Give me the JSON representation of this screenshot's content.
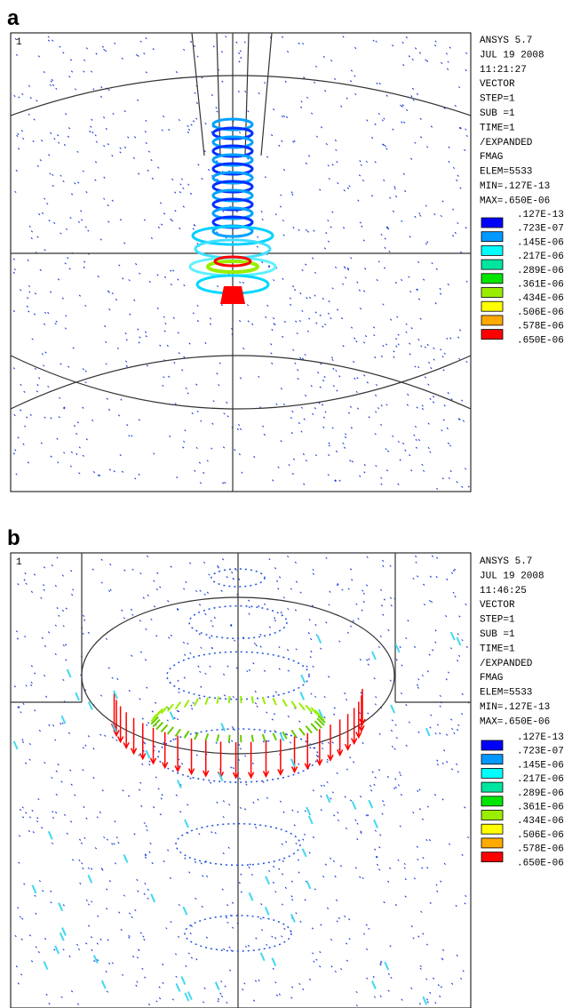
{
  "panels": [
    {
      "label": "a",
      "plot_number": "1",
      "info": [
        "ANSYS 5.7",
        "JUL 19 2008",
        "11:21:27",
        "VECTOR",
        "STEP=1",
        "SUB =1",
        "TIME=1",
        "/EXPANDED",
        "FMAG",
        "ELEM=5533",
        "MIN=.127E-13",
        "MAX=.650E-06"
      ],
      "legend": {
        "colors": [
          "#0000ff",
          "#0099ff",
          "#00ffff",
          "#00e6a0",
          "#00e600",
          "#99ee00",
          "#ffff00",
          "#ffaa00",
          "#ff0000"
        ],
        "labels": [
          ".127E-13",
          ".723E-07",
          ".145E-06",
          ".217E-06",
          ".289E-06",
          ".361E-06",
          ".434E-06",
          ".506E-06",
          ".578E-06",
          ".650E-06"
        ]
      }
    },
    {
      "label": "b",
      "plot_number": "1",
      "info": [
        "ANSYS 5.7",
        "JUL 19 2008",
        "11:46:25",
        "VECTOR",
        "STEP=1",
        "SUB =1",
        "TIME=1",
        "/EXPANDED",
        "FMAG",
        "ELEM=5533",
        "MIN=.127E-13",
        "MAX=.650E-06"
      ],
      "legend": {
        "colors": [
          "#0000ff",
          "#0099ff",
          "#00ffff",
          "#00e6a0",
          "#00e600",
          "#99ee00",
          "#ffff00",
          "#ffaa00",
          "#ff0000"
        ],
        "labels": [
          ".127E-13",
          ".723E-07",
          ".145E-06",
          ".217E-06",
          ".289E-06",
          ".361E-06",
          ".434E-06",
          ".506E-06",
          ".578E-06",
          ".650E-06"
        ]
      }
    }
  ]
}
